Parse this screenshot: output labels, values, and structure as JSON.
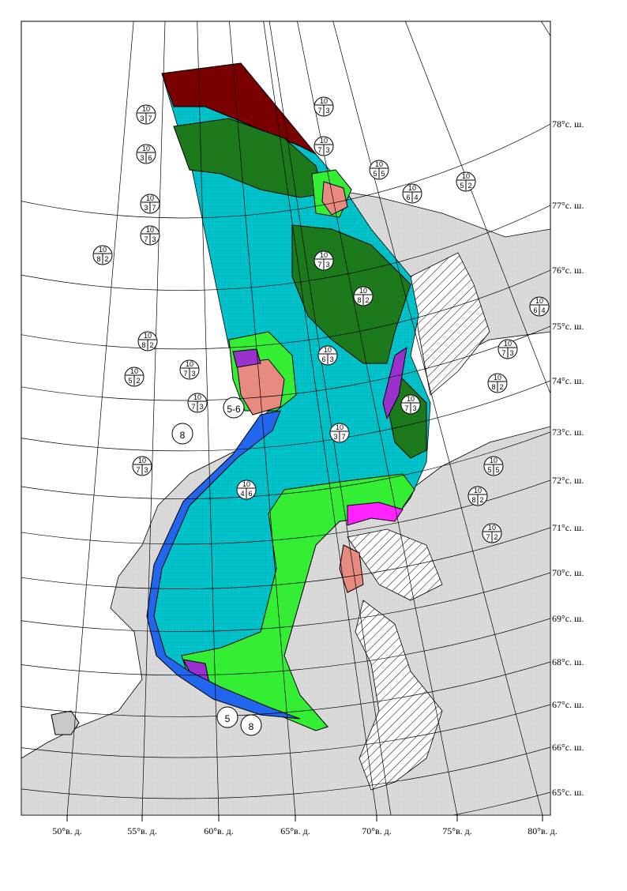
{
  "latitude_labels": [
    "78°с. ш.",
    "77°с. ш.",
    "76°с. ш.",
    "75°с. ш.",
    "74°с. ш.",
    "73°с. ш.",
    "72°с. ш.",
    "71°с. ш.",
    "70°с. ш.",
    "69°с. ш.",
    "68°с. ш.",
    "67°с. ш.",
    "66°с. ш.",
    "65°с. ш."
  ],
  "longitude_labels": [
    "50°в. д.",
    "55°в. д.",
    "60°в. д.",
    "65°в. д.",
    "70°в. д.",
    "75°в. д.",
    "80°в. д."
  ],
  "ice_codes": [
    {
      "total": "10",
      "partial": [
        "3",
        "7"
      ]
    },
    {
      "total": "10",
      "partial": [
        "7",
        "3"
      ]
    },
    {
      "total": "10",
      "partial": [
        "3",
        "6"
      ]
    },
    {
      "total": "10",
      "partial": [
        "7",
        "3"
      ]
    },
    {
      "total": "10",
      "partial": [
        "5",
        "5"
      ]
    },
    {
      "total": "10",
      "partial": [
        "6",
        "4"
      ]
    },
    {
      "total": "10",
      "partial": [
        "5",
        "2"
      ]
    },
    {
      "total": "10",
      "partial": [
        "3",
        "7"
      ]
    },
    {
      "total": "10",
      "partial": [
        "7",
        "3"
      ]
    },
    {
      "total": "10",
      "partial": [
        "8",
        "2"
      ]
    },
    {
      "total": "10",
      "partial": [
        "7",
        "3"
      ]
    },
    {
      "total": "10",
      "partial": [
        "8",
        "2"
      ]
    },
    {
      "total": "10",
      "partial": [
        "6",
        "4"
      ]
    },
    {
      "total": "10",
      "partial": [
        "7",
        "3"
      ]
    },
    {
      "total": "10",
      "partial": [
        "8",
        "2"
      ]
    },
    {
      "total": "10",
      "partial": [
        "7",
        "3"
      ]
    },
    {
      "total": "10",
      "partial": [
        "5",
        "2"
      ]
    },
    {
      "total": "10",
      "partial": [
        "7",
        "3"
      ]
    },
    {
      "total": "10",
      "partial": [
        "6",
        "3"
      ]
    },
    {
      "total": "10",
      "partial": [
        "8",
        "2"
      ]
    },
    {
      "total": "10",
      "partial": [
        "7",
        "3"
      ]
    },
    {
      "total": "10",
      "partial": [
        "3",
        "7"
      ]
    },
    {
      "total": "10",
      "partial": [
        "5",
        "5"
      ]
    },
    {
      "total": "10",
      "partial": [
        "7",
        "3"
      ]
    },
    {
      "total": "10",
      "partial": [
        "8",
        "2"
      ]
    },
    {
      "total": "10",
      "partial": [
        "4",
        "6"
      ]
    },
    {
      "total": "10",
      "partial": [
        "7",
        "2"
      ]
    }
  ],
  "ice_numbers": [
    "5-6",
    "8",
    "5",
    "8"
  ]
}
